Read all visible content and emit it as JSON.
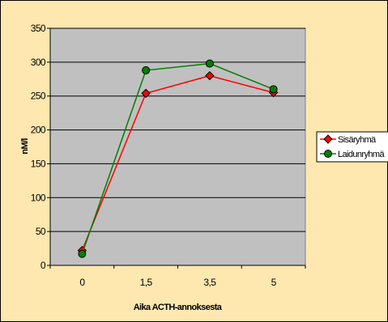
{
  "chart_data": {
    "type": "line",
    "title": "",
    "xlabel": "Aika ACTH-annoksesta",
    "ylabel": "nM/l",
    "categories": [
      "0",
      "1,5",
      "3,5",
      "5"
    ],
    "ylim": [
      0,
      350
    ],
    "yticks": [
      0,
      50,
      100,
      150,
      200,
      250,
      300,
      350
    ],
    "grid": "horizontal",
    "legend_position": "right",
    "plot_background": "#C0C0C0",
    "chart_background": "#FFE7B0",
    "series": [
      {
        "name": "Sisäryhmä",
        "color": "#FF0000",
        "marker": "diamond",
        "values": [
          22,
          254,
          280,
          255
        ]
      },
      {
        "name": "Laidunryhmä",
        "color": "#008000",
        "marker": "circle",
        "values": [
          17,
          288,
          298,
          260
        ]
      }
    ]
  }
}
